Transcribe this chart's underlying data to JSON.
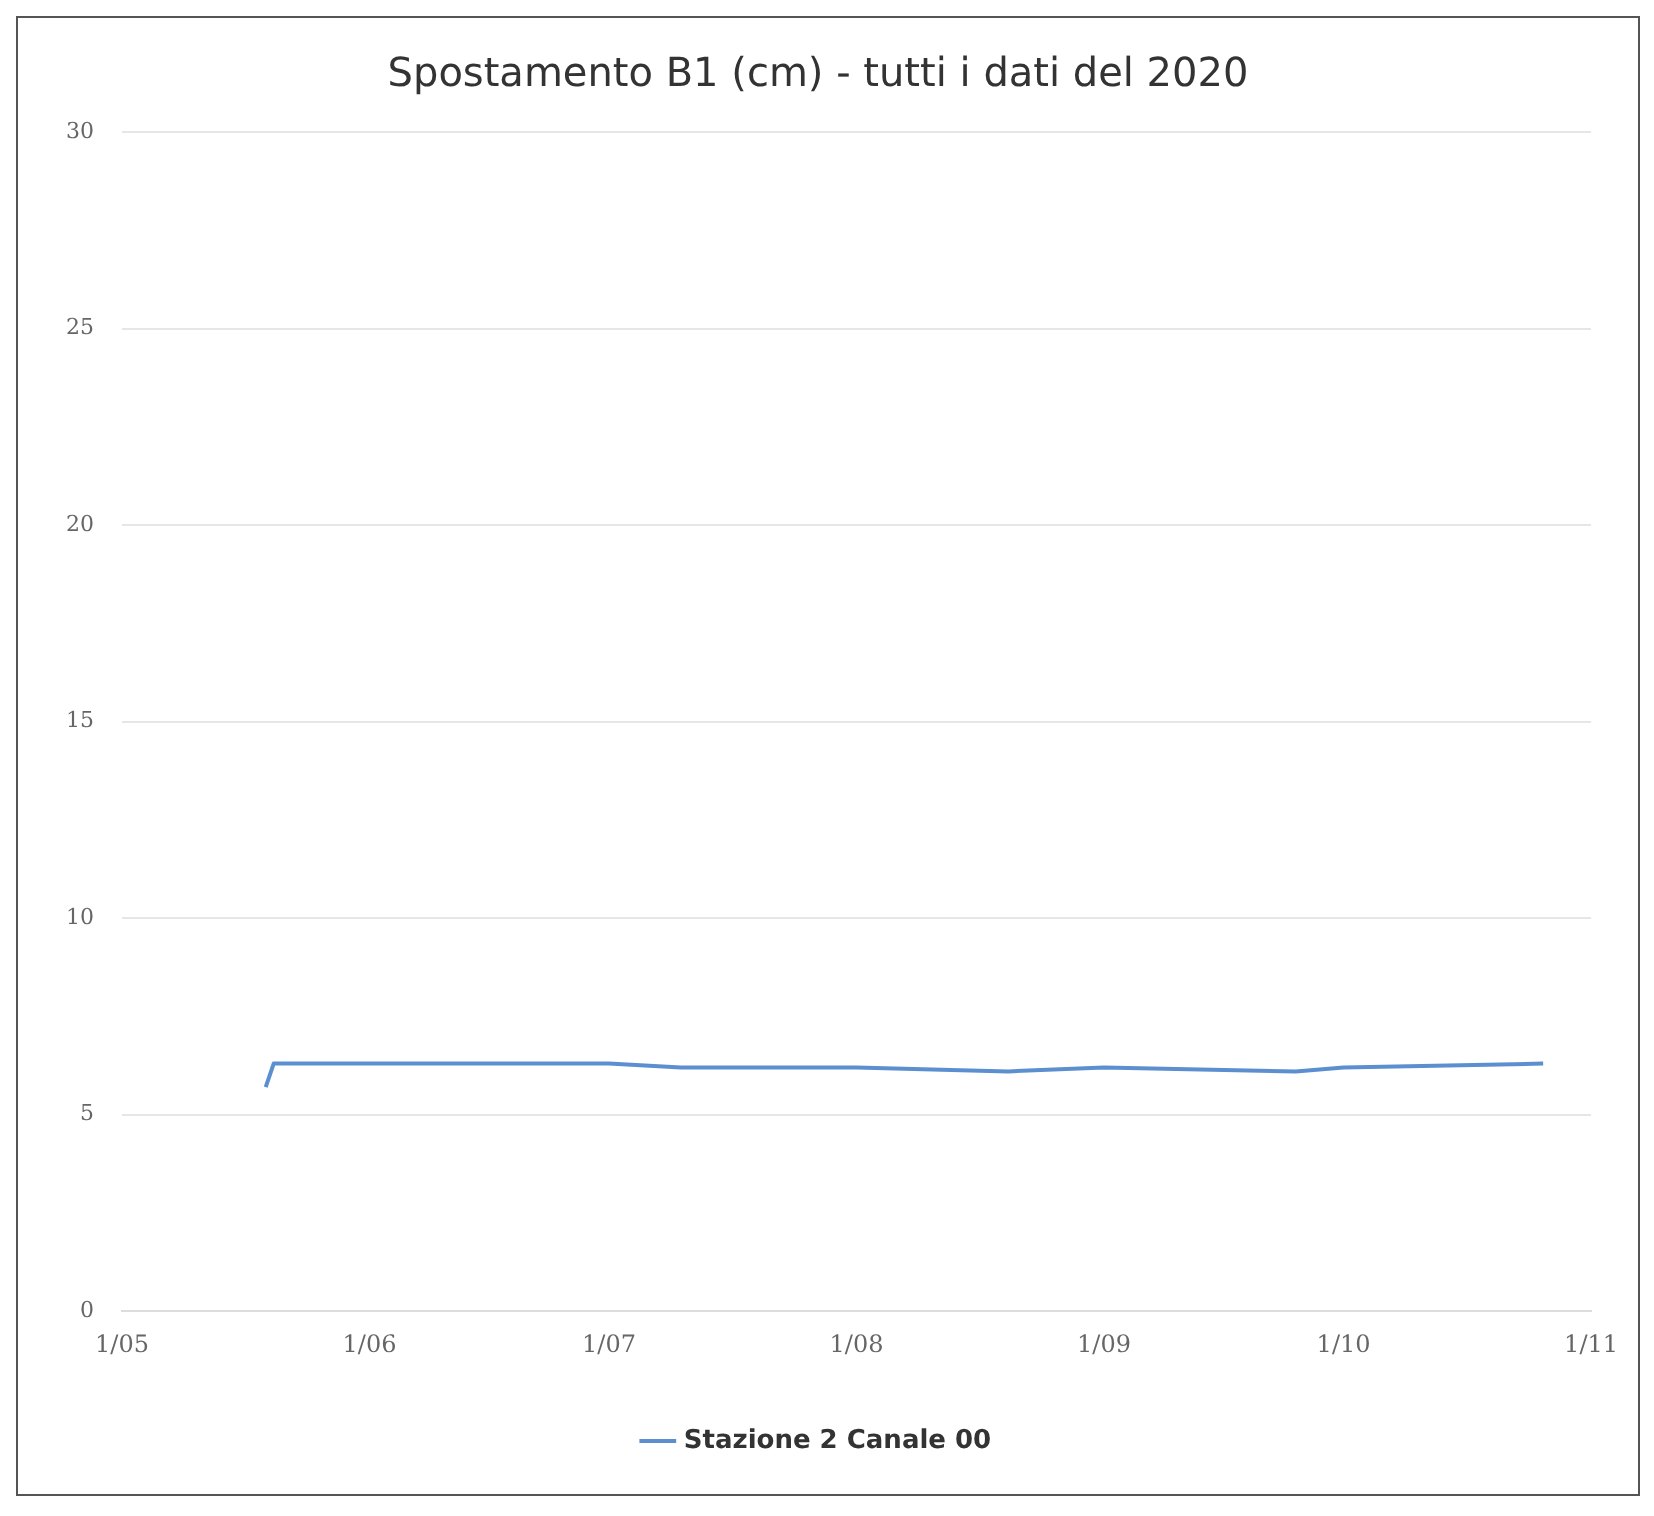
{
  "chart_data": {
    "type": "line",
    "title": "Spostamento B1 (cm) - tutti i dati del 2020",
    "x": [
      "2020-05-19",
      "2020-05-20",
      "2020-06-15",
      "2020-07-01",
      "2020-07-10",
      "2020-08-01",
      "2020-08-20",
      "2020-09-01",
      "2020-09-25",
      "2020-10-01",
      "2020-10-26"
    ],
    "series": [
      {
        "name": "Stazione 2 Canale 00",
        "color": "#5b8fd0",
        "values": [
          5.7,
          6.3,
          6.3,
          6.3,
          6.2,
          6.2,
          6.1,
          6.2,
          6.1,
          6.2,
          6.3
        ]
      }
    ],
    "xlim": [
      "2020-05-01",
      "2020-11-01"
    ],
    "xticks": [
      {
        "value": "2020-05-01",
        "label": "1/05"
      },
      {
        "value": "2020-06-01",
        "label": "1/06"
      },
      {
        "value": "2020-07-01",
        "label": "1/07"
      },
      {
        "value": "2020-08-01",
        "label": "1/08"
      },
      {
        "value": "2020-09-01",
        "label": "1/09"
      },
      {
        "value": "2020-10-01",
        "label": "1/10"
      },
      {
        "value": "2020-11-01",
        "label": "1/11"
      }
    ],
    "ylim": [
      0,
      30
    ],
    "yticks": [
      0,
      5,
      10,
      15,
      20,
      25,
      30
    ],
    "grid": "y",
    "legend": "bottom",
    "marker": "none",
    "line_style": "solid"
  }
}
